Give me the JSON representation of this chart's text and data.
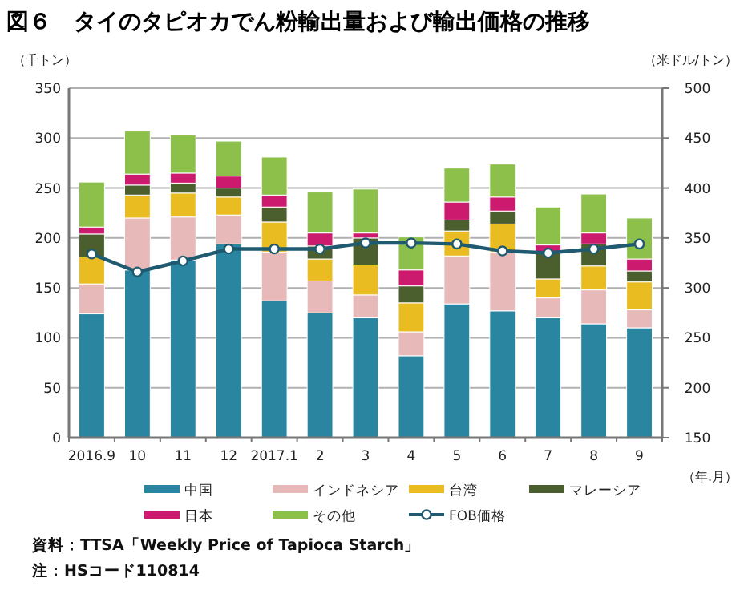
{
  "chart_data": {
    "type": "bar",
    "stacked": true,
    "title": "図６　タイのタピオカでん粉輸出量および輸出価格の推移",
    "ylabel": "（千トン）",
    "y2label": "（米ドル/トン）",
    "xlabel": "（年.月）",
    "categories": [
      "2016.9",
      "10",
      "11",
      "12",
      "2017.1",
      "2",
      "3",
      "4",
      "5",
      "6",
      "7",
      "8",
      "9"
    ],
    "series": [
      {
        "name": "中国",
        "color": "#2a86a0",
        "values": [
          124,
          168,
          178,
          194,
          137,
          125,
          120,
          82,
          134,
          127,
          120,
          114,
          110
        ]
      },
      {
        "name": "インドネシア",
        "color": "#e8b9b9",
        "values": [
          30,
          52,
          43,
          29,
          49,
          32,
          23,
          24,
          48,
          59,
          20,
          34,
          18
        ]
      },
      {
        "name": "台湾",
        "color": "#e9bc22",
        "values": [
          27,
          23,
          24,
          18,
          30,
          22,
          30,
          29,
          25,
          28,
          19,
          24,
          28
        ]
      },
      {
        "name": "マレーシア",
        "color": "#4a5e2e",
        "values": [
          23,
          10,
          10,
          9,
          15,
          13,
          27,
          17,
          11,
          13,
          27,
          22,
          11
        ]
      },
      {
        "name": "日本",
        "color": "#cc1a6e",
        "values": [
          7,
          11,
          10,
          12,
          12,
          13,
          5,
          16,
          18,
          14,
          7,
          11,
          12
        ]
      },
      {
        "name": "その他",
        "color": "#8dbf4b",
        "values": [
          45,
          43,
          38,
          35,
          38,
          41,
          44,
          33,
          34,
          33,
          38,
          39,
          41
        ]
      },
      {
        "name": "FOB価格",
        "type": "line",
        "axis": "y2",
        "color": "#1f5a70",
        "marker": "circle",
        "values": [
          334,
          316,
          327,
          339,
          339,
          339,
          345,
          345,
          344,
          337,
          335,
          339,
          344
        ]
      }
    ],
    "ylim": [
      0,
      350
    ],
    "yticks": [
      0,
      50,
      100,
      150,
      200,
      250,
      300,
      350
    ],
    "y2lim": [
      150,
      500
    ],
    "y2ticks": [
      150,
      200,
      250,
      300,
      350,
      400,
      450,
      500
    ],
    "grid": "y",
    "legend": "bottom",
    "annotations": [
      "資料：TTSA「Weekly Price of Tapioca Starch」",
      "注：HSコード110814"
    ]
  }
}
